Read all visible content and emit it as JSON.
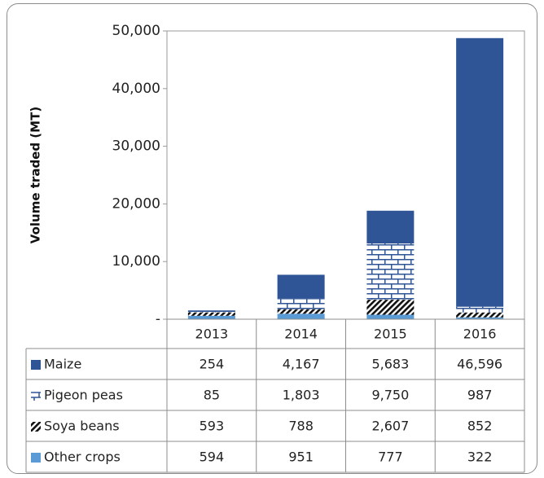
{
  "chart_data": {
    "type": "bar",
    "stacked": true,
    "title": "",
    "xlabel": "",
    "ylabel": "Volume traded (MT)",
    "ylim": [
      0,
      50000
    ],
    "yticks": [
      "-",
      "10,000",
      "20,000",
      "30,000",
      "40,000",
      "50,000"
    ],
    "ytick_values": [
      0,
      10000,
      20000,
      30000,
      40000,
      50000
    ],
    "grid": false,
    "legend": "data-table-rows",
    "categories": [
      "2013",
      "2014",
      "2015",
      "2016"
    ],
    "series": [
      {
        "name": "Maize",
        "values": [
          254,
          4167,
          5683,
          46596
        ],
        "labels": [
          "254",
          "4,167",
          "5,683",
          "46,596"
        ],
        "color": "#2f5597",
        "pattern": "solid"
      },
      {
        "name": "Pigeon peas",
        "values": [
          85,
          1803,
          9750,
          987
        ],
        "labels": [
          "85",
          "1,803",
          "9,750",
          "987"
        ],
        "color": "#2f5597",
        "pattern": "brick"
      },
      {
        "name": "Soya beans",
        "values": [
          593,
          788,
          2607,
          852
        ],
        "labels": [
          "593",
          "788",
          "2,607",
          "852"
        ],
        "color": "#111111",
        "pattern": "diagonal"
      },
      {
        "name": "Other crops",
        "values": [
          594,
          951,
          777,
          322
        ],
        "labels": [
          "594",
          "951",
          "777",
          "322"
        ],
        "color": "#5b9bd5",
        "pattern": "solid"
      }
    ]
  }
}
